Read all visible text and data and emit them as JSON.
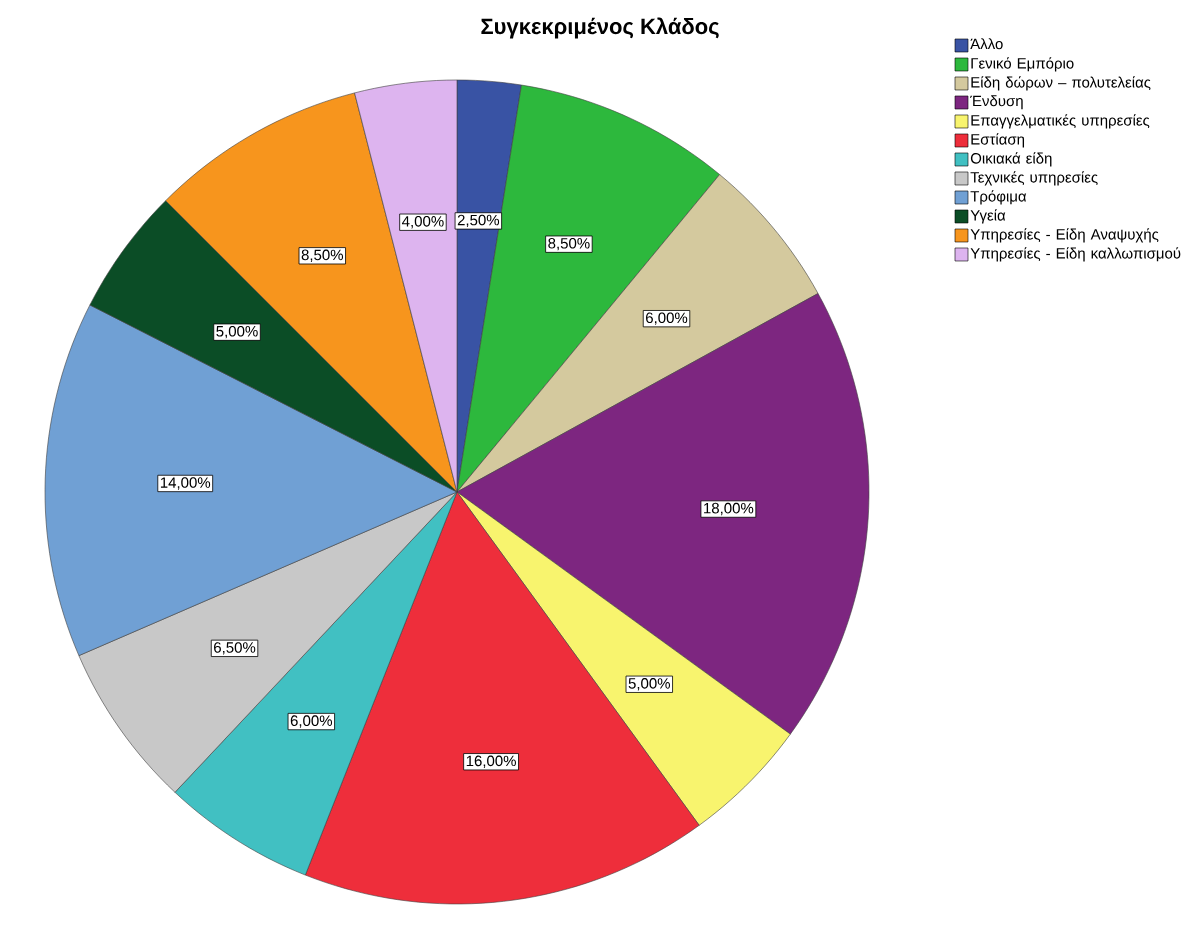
{
  "chart_data": {
    "type": "pie",
    "title": "Συγκεκριμένος Κλάδος",
    "categories": [
      "Άλλο",
      "Γενικό Εμπόριο",
      "Είδη δώρων – πολυτελείας",
      "Ένδυση",
      "Επαγγελματικές υπηρεσίες",
      "Εστίαση",
      "Οικιακά είδη",
      "Τεχνικές υπηρεσίες",
      "Τρόφιμα",
      "Υγεία",
      "Υπηρεσίες - Είδη Αναψυχής",
      "Υπηρεσίες - Είδη καλλωπισμού"
    ],
    "values": [
      2.5,
      8.5,
      6,
      18,
      5,
      16,
      6,
      6.5,
      14,
      5,
      8.5,
      4
    ],
    "value_labels": [
      "2,50%",
      "8,50%",
      "6,00%",
      "18,00%",
      "5,00%",
      "16,00%",
      "6,00%",
      "6,50%",
      "14,00%",
      "5,00%",
      "8,50%",
      "4,00%"
    ],
    "colors": [
      "#3953a4",
      "#2db83d",
      "#d4c99e",
      "#7d2680",
      "#f8f46e",
      "#ee2e3b",
      "#41c0c2",
      "#c8c8c8",
      "#70a0d4",
      "#0b4d26",
      "#f7951d",
      "#ddb4ef"
    ],
    "legend": "top right"
  }
}
